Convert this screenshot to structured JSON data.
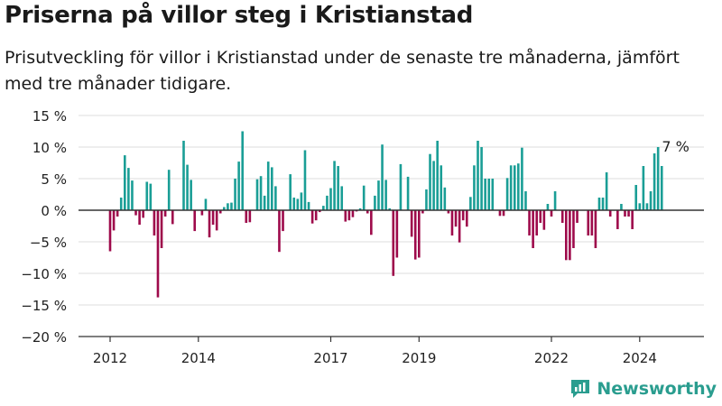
{
  "title": "Priserna på villor steg i Kristianstad",
  "subtitle": "Prisutveckling för villor i Kristianstad under de senaste tre månaderna, jämfört med tre månader tidigare.",
  "brand": "Newsworthy",
  "colors": {
    "positive": "#1a9e96",
    "negative": "#9e0a4b",
    "grid": "#dddddd",
    "zero": "#333333",
    "brand": "#2a9d8f"
  },
  "chart_data": {
    "type": "bar",
    "title": "Priserna på villor steg i Kristianstad",
    "subtitle": "Prisutveckling för villor i Kristianstad under de senaste tre månaderna, jämfört med tre månader tidigare.",
    "ylim": [
      -20,
      15
    ],
    "yticks": [
      15,
      10,
      5,
      0,
      -5,
      -10,
      -15,
      -20
    ],
    "ytick_labels": [
      "15 %",
      "10 %",
      "5 %",
      "0 %",
      "−5 %",
      "−10 %",
      "−15 %",
      "−20 %"
    ],
    "xtick_labels": [
      {
        "label": "2012",
        "index": 0
      },
      {
        "label": "2014",
        "index": 24
      },
      {
        "label": "2017",
        "index": 60
      },
      {
        "label": "2019",
        "index": 84
      },
      {
        "label": "2022",
        "index": 120
      },
      {
        "label": "2024",
        "index": 144
      }
    ],
    "grid": true,
    "annotation": {
      "text": "7 %",
      "index": 154
    },
    "values": [
      -6.5,
      -3.2,
      -1.0,
      2.0,
      8.7,
      6.7,
      4.7,
      -0.8,
      -2.3,
      -1.2,
      4.5,
      4.2,
      -4.0,
      -13.8,
      -6.0,
      -1.0,
      6.4,
      -2.2,
      0.0,
      0.0,
      11.0,
      7.2,
      4.8,
      -3.3,
      0.0,
      -0.8,
      1.8,
      -4.3,
      -2.3,
      -3.2,
      -0.5,
      0.5,
      1.1,
      1.2,
      5.0,
      7.7,
      12.5,
      -2.0,
      -1.9,
      0.0,
      4.9,
      5.4,
      2.3,
      7.7,
      6.8,
      3.8,
      -6.6,
      -3.3,
      0.0,
      5.7,
      2.0,
      1.8,
      2.8,
      9.5,
      1.3,
      -2.1,
      -1.6,
      -0.3,
      0.7,
      2.3,
      3.5,
      7.8,
      7.0,
      3.8,
      -1.8,
      -1.6,
      -1.1,
      -0.2,
      0.3,
      3.9,
      -0.5,
      -3.9,
      2.3,
      4.7,
      10.4,
      4.8,
      0.3,
      -10.4,
      -7.5,
      7.3,
      0.0,
      5.3,
      -4.2,
      -7.8,
      -7.5,
      -0.5,
      3.3,
      8.9,
      7.8,
      11.0,
      7.1,
      3.6,
      -0.5,
      -4.0,
      -2.6,
      -5.1,
      -1.6,
      -2.6,
      2.1,
      7.1,
      11.0,
      10.0,
      5.0,
      5.0,
      5.0,
      0.0,
      -0.9,
      -0.9,
      5.1,
      7.1,
      7.1,
      7.4,
      9.9,
      3.0,
      -4.0,
      -6.0,
      -4.0,
      -2.0,
      -3.1,
      1.0,
      -1.0,
      3.0,
      0.0,
      -2.0,
      -7.9,
      -7.9,
      -6.0,
      -2.0,
      0.0,
      0.0,
      -4.0,
      -4.0,
      -6.0,
      2.0,
      2.0,
      6.0,
      -1.0,
      0.0,
      -3.0,
      1.0,
      -1.0,
      -1.0,
      -3.0,
      4.0,
      1.1,
      7.0,
      1.1,
      3.0,
      9.0,
      10.0,
      7.0
    ]
  }
}
